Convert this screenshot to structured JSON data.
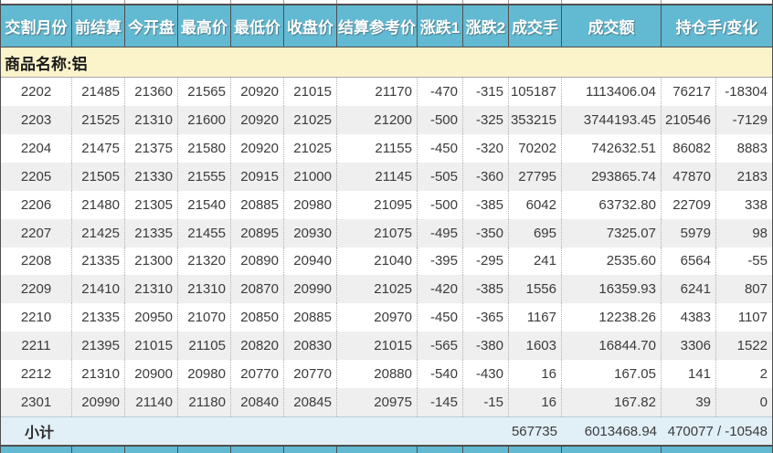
{
  "colors": {
    "header_bg": "#62b9d2",
    "header_text": "#ffffff",
    "commodity_bg": "#fbf4cb",
    "row_alt_bg": "#efefef",
    "subtotal_bg": "#e1eff7",
    "border_dark": "#4f4f4f"
  },
  "header": {
    "columns": [
      "交割月份",
      "前结算",
      "今开盘",
      "最高价",
      "最低价",
      "收盘价",
      "结算参考价",
      "涨跌1",
      "涨跌2",
      "成交手",
      "成交额",
      "持仓手/变化"
    ]
  },
  "commodity": {
    "label": "商品名称:铝"
  },
  "table": {
    "rows": [
      [
        "2202",
        "21485",
        "21360",
        "21565",
        "20920",
        "21015",
        "21170",
        "-470",
        "-315",
        "105187",
        "1113406.04",
        "76217",
        "-18304"
      ],
      [
        "2203",
        "21525",
        "21310",
        "21600",
        "20920",
        "21025",
        "21200",
        "-500",
        "-325",
        "353215",
        "3744193.45",
        "210546",
        "-7129"
      ],
      [
        "2204",
        "21475",
        "21375",
        "21580",
        "20920",
        "21025",
        "21155",
        "-450",
        "-320",
        "70202",
        "742632.51",
        "86082",
        "8883"
      ],
      [
        "2205",
        "21505",
        "21330",
        "21555",
        "20915",
        "21000",
        "21145",
        "-505",
        "-360",
        "27795",
        "293865.74",
        "47870",
        "2183"
      ],
      [
        "2206",
        "21480",
        "21305",
        "21540",
        "20885",
        "20980",
        "21095",
        "-500",
        "-385",
        "6042",
        "63732.80",
        "22709",
        "338"
      ],
      [
        "2207",
        "21425",
        "21335",
        "21455",
        "20895",
        "20930",
        "21075",
        "-495",
        "-350",
        "695",
        "7325.07",
        "5979",
        "98"
      ],
      [
        "2208",
        "21335",
        "21300",
        "21320",
        "20890",
        "20940",
        "21040",
        "-395",
        "-295",
        "241",
        "2535.60",
        "6564",
        "-55"
      ],
      [
        "2209",
        "21410",
        "21310",
        "21310",
        "20870",
        "20990",
        "21025",
        "-420",
        "-385",
        "1556",
        "16359.93",
        "6241",
        "807"
      ],
      [
        "2210",
        "21335",
        "20950",
        "21070",
        "20850",
        "20885",
        "20970",
        "-450",
        "-365",
        "1167",
        "12238.26",
        "4383",
        "1107"
      ],
      [
        "2211",
        "21395",
        "21015",
        "21105",
        "20820",
        "20830",
        "21015",
        "-565",
        "-380",
        "1603",
        "16844.70",
        "3306",
        "1522"
      ],
      [
        "2212",
        "21310",
        "20900",
        "20980",
        "20770",
        "20770",
        "20880",
        "-540",
        "-430",
        "16",
        "167.05",
        "141",
        "2"
      ],
      [
        "2301",
        "20990",
        "21140",
        "21180",
        "20840",
        "20845",
        "20975",
        "-145",
        "-15",
        "16",
        "167.82",
        "39",
        "0"
      ]
    ]
  },
  "subtotal": {
    "label": "小计",
    "volume": "567735",
    "turnover": "6013468.94",
    "open_interest_change": "470077 / -10548"
  }
}
